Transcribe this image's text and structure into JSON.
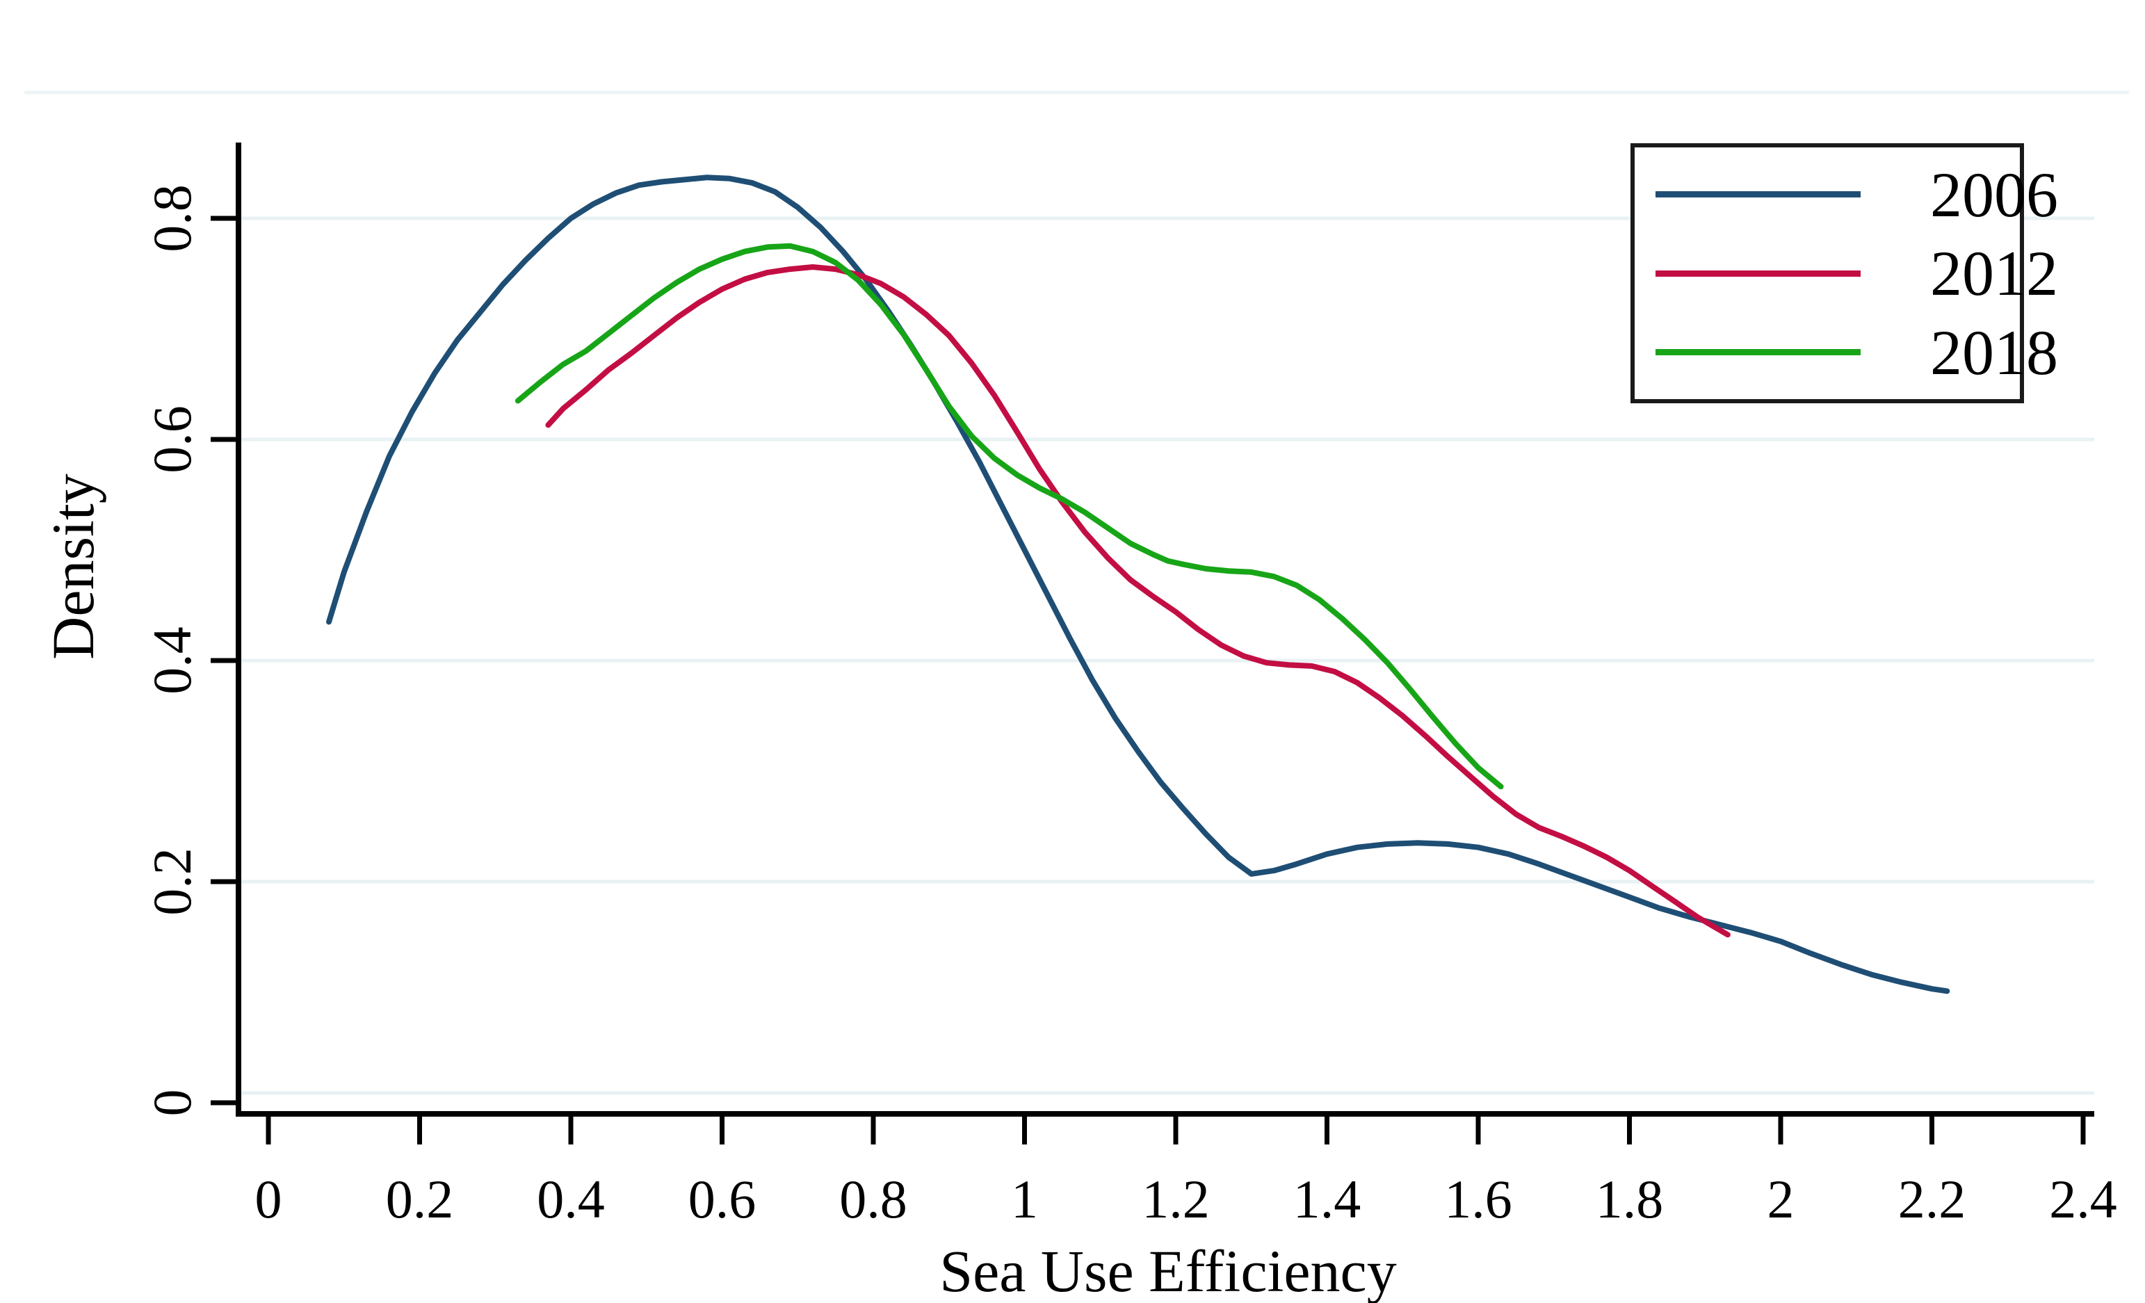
{
  "figure": {
    "xlabel": "Sea Use Efficiency",
    "ylabel": "Density",
    "x_tick_labels": [
      "0",
      "0.2",
      "0.4",
      "0.6",
      "0.8",
      "1",
      "1.2",
      "1.4",
      "1.6",
      "1.8",
      "2",
      "2.2",
      "2.4"
    ],
    "y_tick_labels": [
      "0",
      "0.2",
      "0.4",
      "0.6",
      "0.8"
    ]
  },
  "colors": {
    "series_2006": "#1f4e75",
    "series_2012": "#c30e44",
    "series_2018": "#17a517",
    "gridline": "#e8f1f3",
    "frame_top_line": "#eef4f6",
    "axis": "#000000"
  },
  "chart_data": {
    "type": "line",
    "title": "",
    "xlabel": "Sea Use Efficiency",
    "ylabel": "Density",
    "xlim": [
      -0.04,
      2.48
    ],
    "ylim": [
      0,
      0.85
    ],
    "x_tick_values": [
      0,
      0.2,
      0.4,
      0.6,
      0.8,
      1,
      1.2,
      1.4,
      1.6,
      1.8,
      2,
      2.2,
      2.4
    ],
    "y_tick_values": [
      0,
      0.2,
      0.4,
      0.6,
      0.8
    ],
    "grid": "horizontal",
    "legend_position": "top-right",
    "legend_entries": [
      "2006",
      "2012",
      "2018"
    ],
    "series": [
      {
        "name": "2006",
        "color": "#1f4e75",
        "points": [
          [
            0.08,
            0.435
          ],
          [
            0.1,
            0.48
          ],
          [
            0.13,
            0.535
          ],
          [
            0.16,
            0.585
          ],
          [
            0.19,
            0.625
          ],
          [
            0.22,
            0.66
          ],
          [
            0.25,
            0.69
          ],
          [
            0.28,
            0.715
          ],
          [
            0.31,
            0.74
          ],
          [
            0.34,
            0.762
          ],
          [
            0.37,
            0.782
          ],
          [
            0.4,
            0.8
          ],
          [
            0.43,
            0.813
          ],
          [
            0.46,
            0.823
          ],
          [
            0.49,
            0.83
          ],
          [
            0.52,
            0.833
          ],
          [
            0.55,
            0.835
          ],
          [
            0.58,
            0.837
          ],
          [
            0.61,
            0.836
          ],
          [
            0.64,
            0.832
          ],
          [
            0.67,
            0.824
          ],
          [
            0.7,
            0.81
          ],
          [
            0.73,
            0.792
          ],
          [
            0.76,
            0.77
          ],
          [
            0.79,
            0.745
          ],
          [
            0.82,
            0.716
          ],
          [
            0.85,
            0.685
          ],
          [
            0.88,
            0.652
          ],
          [
            0.91,
            0.617
          ],
          [
            0.94,
            0.58
          ],
          [
            0.97,
            0.54
          ],
          [
            1.0,
            0.5
          ],
          [
            1.03,
            0.46
          ],
          [
            1.06,
            0.42
          ],
          [
            1.09,
            0.382
          ],
          [
            1.12,
            0.348
          ],
          [
            1.15,
            0.318
          ],
          [
            1.18,
            0.29
          ],
          [
            1.21,
            0.266
          ],
          [
            1.24,
            0.243
          ],
          [
            1.27,
            0.222
          ],
          [
            1.3,
            0.207
          ],
          [
            1.33,
            0.21
          ],
          [
            1.36,
            0.216
          ],
          [
            1.4,
            0.225
          ],
          [
            1.44,
            0.231
          ],
          [
            1.48,
            0.234
          ],
          [
            1.52,
            0.235
          ],
          [
            1.56,
            0.234
          ],
          [
            1.6,
            0.231
          ],
          [
            1.64,
            0.225
          ],
          [
            1.68,
            0.216
          ],
          [
            1.72,
            0.206
          ],
          [
            1.76,
            0.196
          ],
          [
            1.8,
            0.186
          ],
          [
            1.84,
            0.176
          ],
          [
            1.88,
            0.168
          ],
          [
            1.92,
            0.161
          ],
          [
            1.96,
            0.154
          ],
          [
            2.0,
            0.146
          ],
          [
            2.04,
            0.135
          ],
          [
            2.08,
            0.125
          ],
          [
            2.12,
            0.116
          ],
          [
            2.16,
            0.109
          ],
          [
            2.2,
            0.103
          ],
          [
            2.22,
            0.101
          ]
        ]
      },
      {
        "name": "2012",
        "color": "#c30e44",
        "points": [
          [
            0.37,
            0.613
          ],
          [
            0.39,
            0.628
          ],
          [
            0.42,
            0.645
          ],
          [
            0.45,
            0.663
          ],
          [
            0.48,
            0.678
          ],
          [
            0.51,
            0.694
          ],
          [
            0.54,
            0.71
          ],
          [
            0.57,
            0.724
          ],
          [
            0.6,
            0.736
          ],
          [
            0.63,
            0.745
          ],
          [
            0.66,
            0.751
          ],
          [
            0.69,
            0.754
          ],
          [
            0.72,
            0.756
          ],
          [
            0.75,
            0.754
          ],
          [
            0.78,
            0.749
          ],
          [
            0.81,
            0.741
          ],
          [
            0.84,
            0.729
          ],
          [
            0.87,
            0.713
          ],
          [
            0.9,
            0.694
          ],
          [
            0.93,
            0.669
          ],
          [
            0.96,
            0.64
          ],
          [
            0.99,
            0.607
          ],
          [
            1.02,
            0.573
          ],
          [
            1.05,
            0.543
          ],
          [
            1.08,
            0.516
          ],
          [
            1.11,
            0.493
          ],
          [
            1.14,
            0.473
          ],
          [
            1.17,
            0.458
          ],
          [
            1.2,
            0.444
          ],
          [
            1.23,
            0.428
          ],
          [
            1.26,
            0.414
          ],
          [
            1.29,
            0.404
          ],
          [
            1.32,
            0.398
          ],
          [
            1.35,
            0.396
          ],
          [
            1.38,
            0.395
          ],
          [
            1.41,
            0.39
          ],
          [
            1.44,
            0.38
          ],
          [
            1.47,
            0.366
          ],
          [
            1.5,
            0.35
          ],
          [
            1.53,
            0.332
          ],
          [
            1.56,
            0.313
          ],
          [
            1.59,
            0.295
          ],
          [
            1.62,
            0.277
          ],
          [
            1.65,
            0.261
          ],
          [
            1.68,
            0.249
          ],
          [
            1.71,
            0.241
          ],
          [
            1.74,
            0.232
          ],
          [
            1.77,
            0.222
          ],
          [
            1.8,
            0.21
          ],
          [
            1.83,
            0.196
          ],
          [
            1.86,
            0.182
          ],
          [
            1.89,
            0.168
          ],
          [
            1.93,
            0.152
          ]
        ]
      },
      {
        "name": "2018",
        "color": "#17a517",
        "points": [
          [
            0.33,
            0.635
          ],
          [
            0.36,
            0.652
          ],
          [
            0.39,
            0.668
          ],
          [
            0.42,
            0.68
          ],
          [
            0.45,
            0.696
          ],
          [
            0.48,
            0.712
          ],
          [
            0.51,
            0.728
          ],
          [
            0.54,
            0.742
          ],
          [
            0.57,
            0.754
          ],
          [
            0.6,
            0.763
          ],
          [
            0.63,
            0.77
          ],
          [
            0.66,
            0.774
          ],
          [
            0.69,
            0.775
          ],
          [
            0.72,
            0.77
          ],
          [
            0.75,
            0.76
          ],
          [
            0.78,
            0.744
          ],
          [
            0.81,
            0.722
          ],
          [
            0.84,
            0.695
          ],
          [
            0.87,
            0.663
          ],
          [
            0.9,
            0.63
          ],
          [
            0.93,
            0.603
          ],
          [
            0.96,
            0.583
          ],
          [
            0.99,
            0.568
          ],
          [
            1.02,
            0.556
          ],
          [
            1.05,
            0.546
          ],
          [
            1.08,
            0.534
          ],
          [
            1.11,
            0.52
          ],
          [
            1.14,
            0.506
          ],
          [
            1.17,
            0.496
          ],
          [
            1.19,
            0.49
          ],
          [
            1.21,
            0.487
          ],
          [
            1.24,
            0.483
          ],
          [
            1.27,
            0.481
          ],
          [
            1.3,
            0.48
          ],
          [
            1.33,
            0.476
          ],
          [
            1.36,
            0.468
          ],
          [
            1.39,
            0.455
          ],
          [
            1.42,
            0.438
          ],
          [
            1.45,
            0.419
          ],
          [
            1.48,
            0.398
          ],
          [
            1.51,
            0.374
          ],
          [
            1.54,
            0.349
          ],
          [
            1.57,
            0.325
          ],
          [
            1.6,
            0.303
          ],
          [
            1.63,
            0.286
          ]
        ]
      }
    ]
  }
}
